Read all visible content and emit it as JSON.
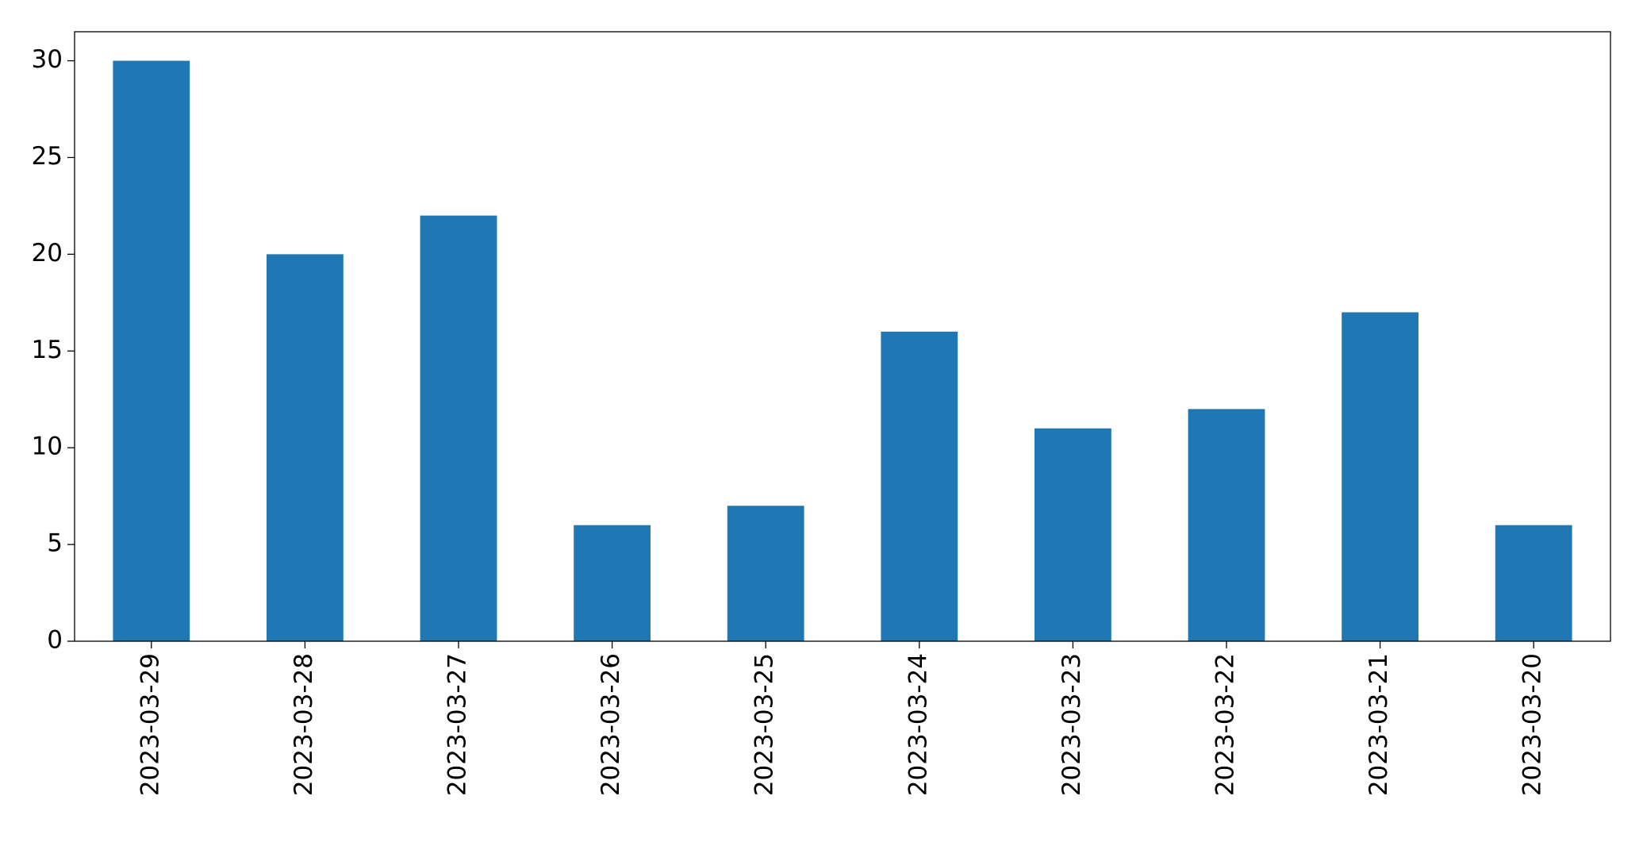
{
  "chart_data": {
    "type": "bar",
    "categories": [
      "2023-03-29",
      "2023-03-28",
      "2023-03-27",
      "2023-03-26",
      "2023-03-25",
      "2023-03-24",
      "2023-03-23",
      "2023-03-22",
      "2023-03-21",
      "2023-03-20"
    ],
    "values": [
      30,
      20,
      22,
      6,
      7,
      16,
      11,
      12,
      17,
      6
    ],
    "color": "#1f77b4",
    "ylim": [
      0,
      31.5
    ],
    "yticks": [
      0,
      5,
      10,
      15,
      20,
      25,
      30
    ],
    "grid": false
  }
}
